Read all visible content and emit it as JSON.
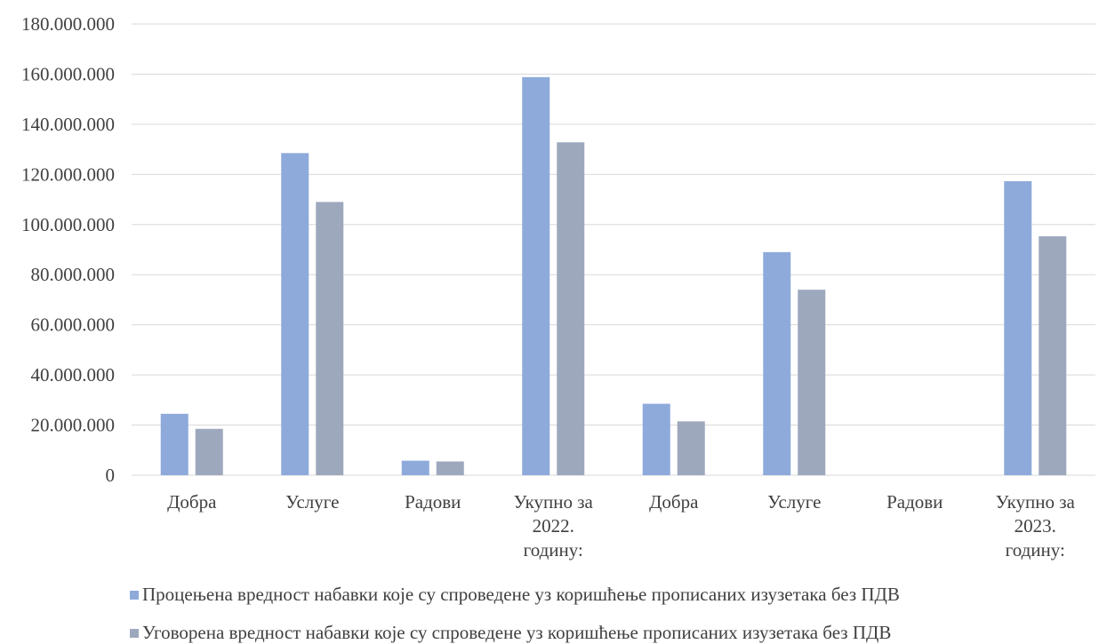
{
  "chart_data": {
    "type": "bar",
    "categories": [
      [
        "Добра"
      ],
      [
        "Услуге"
      ],
      [
        "Радови"
      ],
      [
        "Укупно за",
        "2022.",
        "годину:"
      ],
      [
        "Добра"
      ],
      [
        "Услуге"
      ],
      [
        "Радови"
      ],
      [
        "Укупно за",
        "2023.",
        "годину:"
      ]
    ],
    "series": [
      {
        "name": "Процењена вредност набавки које су спроведене уз коришћење прописаних изузетака без ПДВ",
        "color": "#8eaadb",
        "values": [
          24500000,
          128500000,
          5800000,
          158800000,
          28500000,
          89000000,
          0,
          117300000
        ]
      },
      {
        "name": "Уговорена вредност набавки које су спроведене уз коришћење прописаних изузетака без ПДВ",
        "color": "#9ea8bd",
        "values": [
          18500000,
          109000000,
          5500000,
          132800000,
          21500000,
          74000000,
          0,
          95300000
        ]
      }
    ],
    "ylim": [
      0,
      180000000
    ],
    "yticks": [
      0,
      20000000,
      40000000,
      60000000,
      80000000,
      100000000,
      120000000,
      140000000,
      160000000,
      180000000
    ],
    "ytick_labels": [
      "0",
      "20.000.000",
      "40.000.000",
      "60.000.000",
      "80.000.000",
      "100.000.000",
      "120.000.000",
      "140.000.000",
      "160.000.000",
      "180.000.000"
    ],
    "grid": true,
    "legend_position": "bottom",
    "title": "",
    "xlabel": "",
    "ylabel": ""
  }
}
